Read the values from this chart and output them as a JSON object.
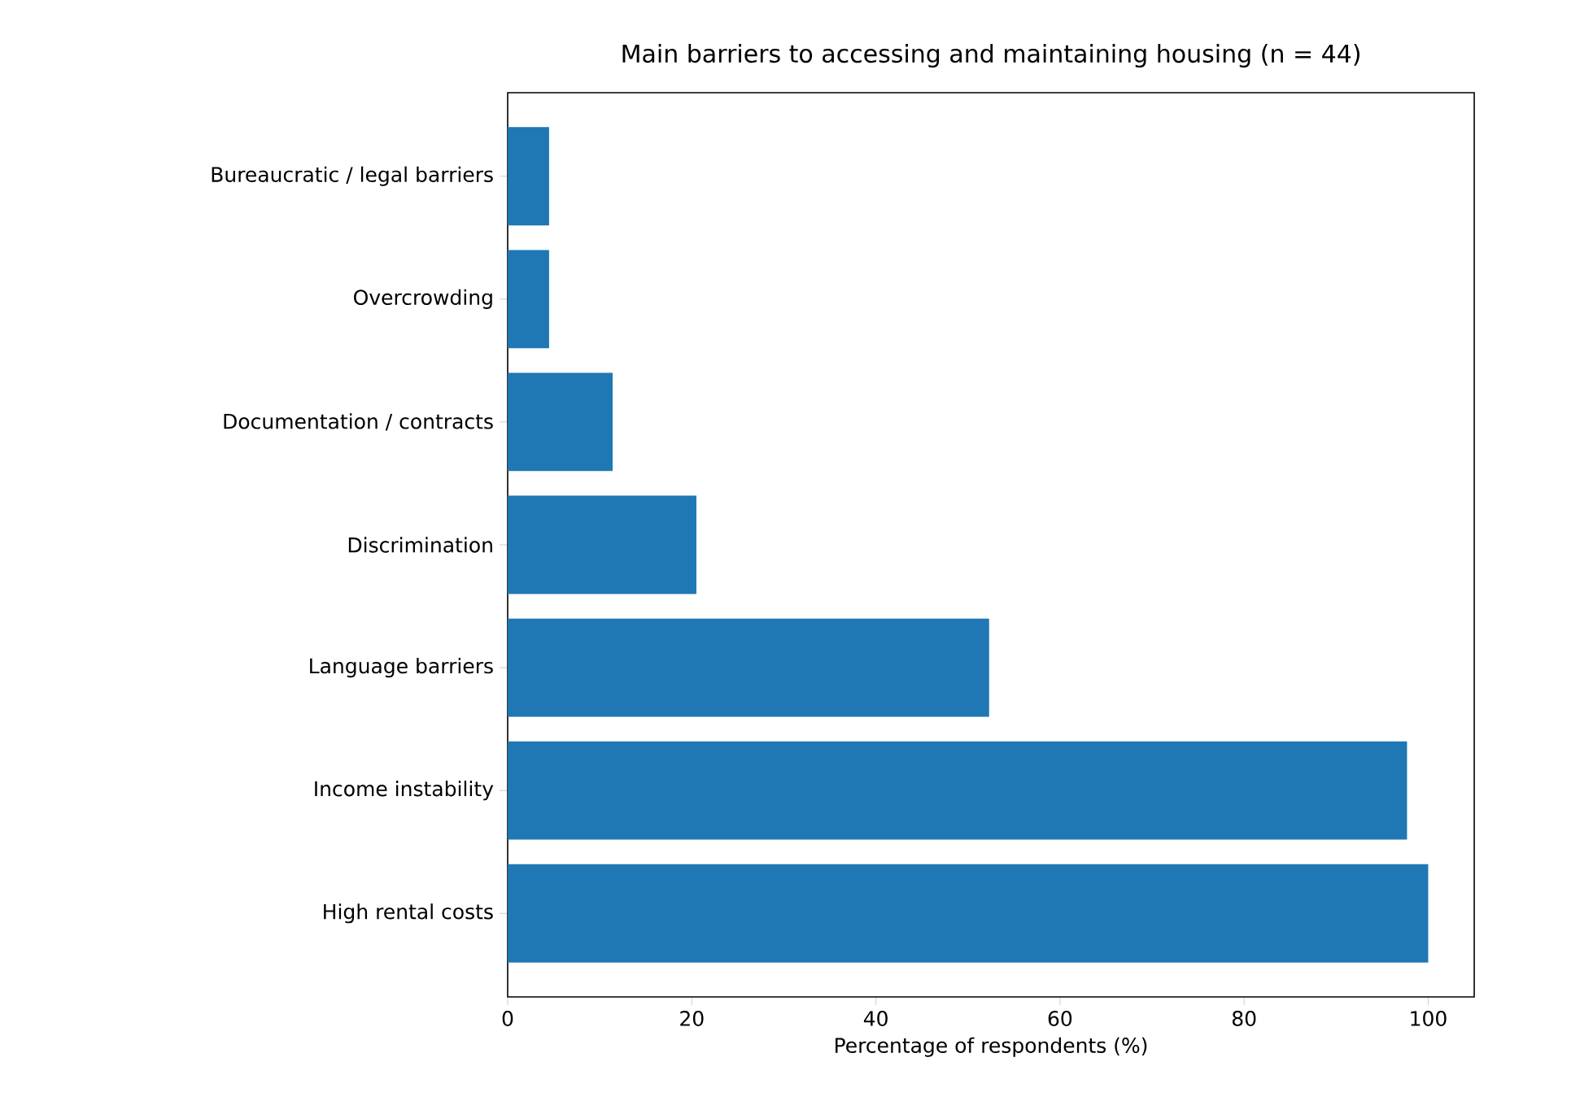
{
  "chart_data": {
    "type": "bar",
    "orientation": "horizontal",
    "title": "Main barriers to accessing and maintaining housing (n = 44)",
    "xlabel": "Percentage of respondents (%)",
    "categories": [
      "Bureaucratic / legal barriers",
      "Overcrowding",
      "Documentation / contracts",
      "Discrimination",
      "Language barriers",
      "Income instability",
      "High rental costs"
    ],
    "values": [
      4.5,
      4.5,
      11.4,
      20.5,
      52.3,
      97.7,
      100
    ],
    "color": "#1f77b4",
    "xlim": [
      0,
      105
    ],
    "xticks": [
      0,
      20,
      40,
      60,
      80,
      100
    ]
  }
}
